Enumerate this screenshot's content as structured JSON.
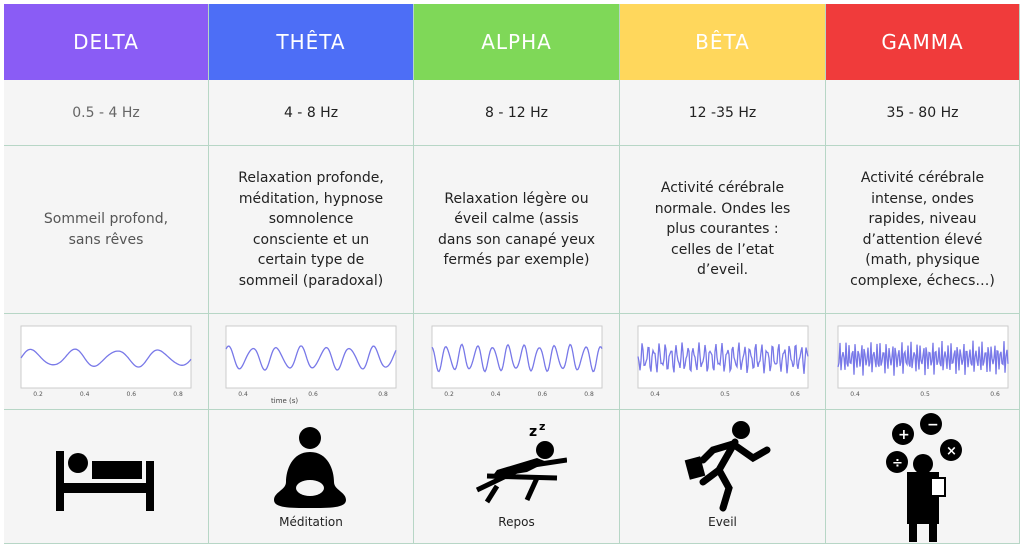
{
  "columns": [
    {
      "name": "DELTA",
      "color": "#8a5cf5",
      "frequency": "0.5  - 4 Hz",
      "description": [
        "Sommeil profond,",
        "sans rêves"
      ],
      "wave_ticks": [
        "0.2",
        "0.4",
        "0.6",
        "0.8"
      ]
    },
    {
      "name": "THÊTA",
      "color": "#4d6ef6",
      "frequency": "4 - 8 Hz",
      "description": [
        "Relaxation profonde,",
        "méditation, hypnose",
        "somnolence",
        "consciente et un",
        "certain type de",
        "sommeil (paradoxal)"
      ],
      "wave_ticks": [
        "0.4",
        "0.6",
        "0.8"
      ],
      "wave_axis": "time (s)",
      "caption": "Méditation"
    },
    {
      "name": "ALPHA",
      "color": "#7fd858",
      "frequency": "8 - 12 Hz",
      "description": [
        "Relaxation légère ou",
        "éveil calme (assis",
        "dans son canapé yeux",
        "fermés par exemple)"
      ],
      "wave_ticks": [
        "0.2",
        "0.4",
        "0.6",
        "0.8"
      ],
      "caption": "Repos"
    },
    {
      "name": "BÊTA",
      "color": "#ffd75c",
      "frequency": "12 -35 Hz",
      "description": [
        "Activité cérébrale",
        "normale. Ondes les",
        "plus courantes :",
        "celles de l’etat",
        "d’eveil."
      ],
      "wave_ticks": [
        "0.4",
        "0.5",
        "0.6"
      ],
      "caption": "Eveil"
    },
    {
      "name": "GAMMA",
      "color": "#f03b3b",
      "frequency": "35 - 80 Hz",
      "description": [
        "Activité cérébrale",
        "intense, ondes",
        "rapides, niveau",
        "d’attention élevé",
        "(math, physique",
        "complexe, échecs…)"
      ],
      "wave_ticks": [
        "0.4",
        "0.5",
        "0.6"
      ]
    }
  ]
}
